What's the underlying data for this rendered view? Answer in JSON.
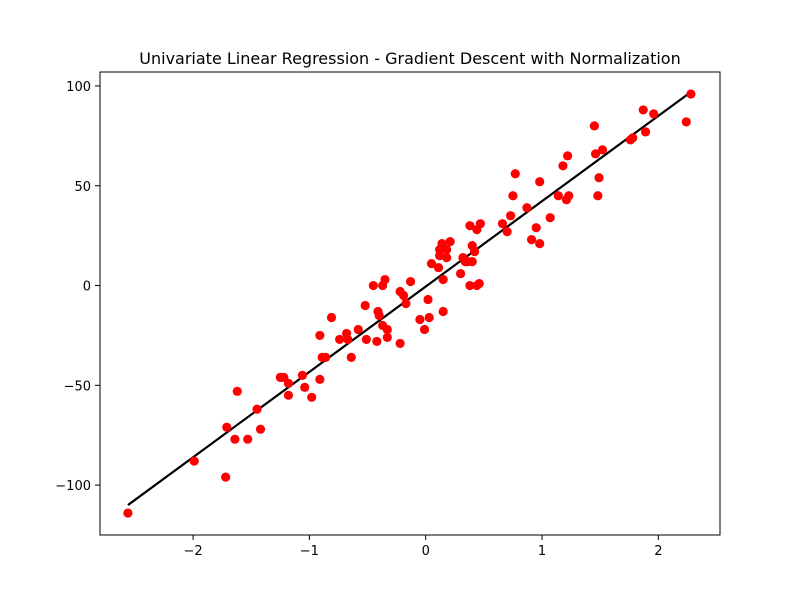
{
  "chart_data": {
    "type": "scatter",
    "title": "Univariate Linear Regression - Gradient Descent with Normalization",
    "xlabel": "",
    "ylabel": "",
    "xlim": [
      -2.8,
      2.53
    ],
    "ylim": [
      -125,
      107
    ],
    "xticks": [
      -2,
      -1,
      0,
      1,
      2
    ],
    "yticks": [
      -100,
      -50,
      0,
      50,
      100
    ],
    "xtick_labels": [
      "−2",
      "−1",
      "0",
      "1",
      "2"
    ],
    "ytick_labels": [
      "−100",
      "−50",
      "0",
      "50",
      "100"
    ],
    "grid": false,
    "legend": "none",
    "series": [
      {
        "kind": "scatter",
        "color": "#ff0000",
        "points": [
          [
            -2.56,
            -114
          ],
          [
            -1.99,
            -88
          ],
          [
            -1.72,
            -96
          ],
          [
            -1.71,
            -71
          ],
          [
            -1.64,
            -77
          ],
          [
            -1.62,
            -53
          ],
          [
            -1.53,
            -77
          ],
          [
            -1.45,
            -62
          ],
          [
            -1.42,
            -72
          ],
          [
            -1.25,
            -46
          ],
          [
            -1.22,
            -46
          ],
          [
            -1.18,
            -55
          ],
          [
            -1.18,
            -49
          ],
          [
            -1.06,
            -45
          ],
          [
            -1.04,
            -51
          ],
          [
            -0.98,
            -56
          ],
          [
            -0.91,
            -47
          ],
          [
            -0.91,
            -25
          ],
          [
            -0.89,
            -36
          ],
          [
            -0.86,
            -36
          ],
          [
            -0.81,
            -16
          ],
          [
            -0.74,
            -27
          ],
          [
            -0.68,
            -24
          ],
          [
            -0.67,
            -27
          ],
          [
            -0.64,
            -36
          ],
          [
            -0.58,
            -22
          ],
          [
            -0.52,
            -10
          ],
          [
            -0.51,
            -27
          ],
          [
            -0.45,
            0
          ],
          [
            -0.42,
            -28
          ],
          [
            -0.41,
            -13
          ],
          [
            -0.4,
            -15
          ],
          [
            -0.37,
            -20
          ],
          [
            -0.37,
            0
          ],
          [
            -0.35,
            3
          ],
          [
            -0.33,
            -26
          ],
          [
            -0.33,
            -22
          ],
          [
            -0.22,
            -3
          ],
          [
            -0.22,
            -29
          ],
          [
            -0.19,
            -5
          ],
          [
            -0.17,
            -9
          ],
          [
            -0.13,
            2
          ],
          [
            -0.05,
            -17
          ],
          [
            -0.01,
            -22
          ],
          [
            0.02,
            -7
          ],
          [
            0.03,
            -16
          ],
          [
            0.05,
            11
          ],
          [
            0.11,
            9
          ],
          [
            0.12,
            18
          ],
          [
            0.12,
            15
          ],
          [
            0.14,
            21
          ],
          [
            0.15,
            3
          ],
          [
            0.15,
            -13
          ],
          [
            0.18,
            18
          ],
          [
            0.18,
            14
          ],
          [
            0.21,
            22
          ],
          [
            0.3,
            6
          ],
          [
            0.32,
            14
          ],
          [
            0.34,
            12
          ],
          [
            0.36,
            12
          ],
          [
            0.38,
            30
          ],
          [
            0.38,
            0
          ],
          [
            0.4,
            12
          ],
          [
            0.4,
            20
          ],
          [
            0.42,
            17
          ],
          [
            0.44,
            0
          ],
          [
            0.44,
            28
          ],
          [
            0.46,
            1
          ],
          [
            0.47,
            31
          ],
          [
            0.66,
            31
          ],
          [
            0.7,
            27
          ],
          [
            0.73,
            35
          ],
          [
            0.75,
            45
          ],
          [
            0.77,
            56
          ],
          [
            0.87,
            39
          ],
          [
            0.91,
            23
          ],
          [
            0.95,
            29
          ],
          [
            0.98,
            21
          ],
          [
            0.98,
            52
          ],
          [
            1.07,
            34
          ],
          [
            1.14,
            45
          ],
          [
            1.18,
            60
          ],
          [
            1.21,
            43
          ],
          [
            1.22,
            65
          ],
          [
            1.23,
            45
          ],
          [
            1.45,
            80
          ],
          [
            1.46,
            66
          ],
          [
            1.48,
            45
          ],
          [
            1.49,
            54
          ],
          [
            1.52,
            68
          ],
          [
            1.76,
            73
          ],
          [
            1.78,
            74
          ],
          [
            1.87,
            88
          ],
          [
            1.89,
            77
          ],
          [
            1.96,
            86
          ],
          [
            2.24,
            82
          ],
          [
            2.28,
            96
          ]
        ]
      },
      {
        "kind": "line",
        "color": "#000000",
        "points": [
          [
            -2.56,
            -110
          ],
          [
            2.28,
            97
          ]
        ]
      }
    ]
  }
}
